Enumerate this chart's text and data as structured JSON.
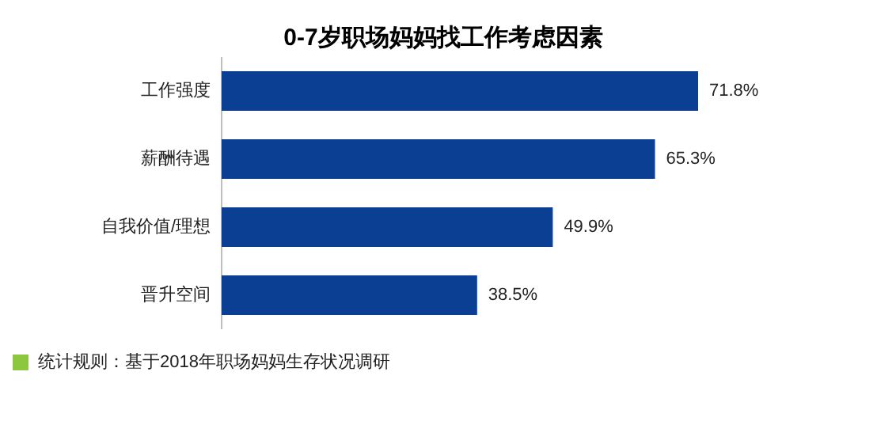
{
  "chart_data": {
    "type": "bar",
    "orientation": "horizontal",
    "title": "0-7岁职场妈妈找工作考虑因素",
    "categories": [
      "工作强度",
      "薪酬待遇",
      "自我价值/理想",
      "晋升空间"
    ],
    "values": [
      71.8,
      65.3,
      49.9,
      38.5
    ],
    "value_labels": [
      "71.8%",
      "65.3%",
      "49.9%",
      "38.5%"
    ],
    "color": "#0b3f94",
    "annotations": [
      "统计规则：基于2018年职场妈妈生存状况调研"
    ]
  }
}
